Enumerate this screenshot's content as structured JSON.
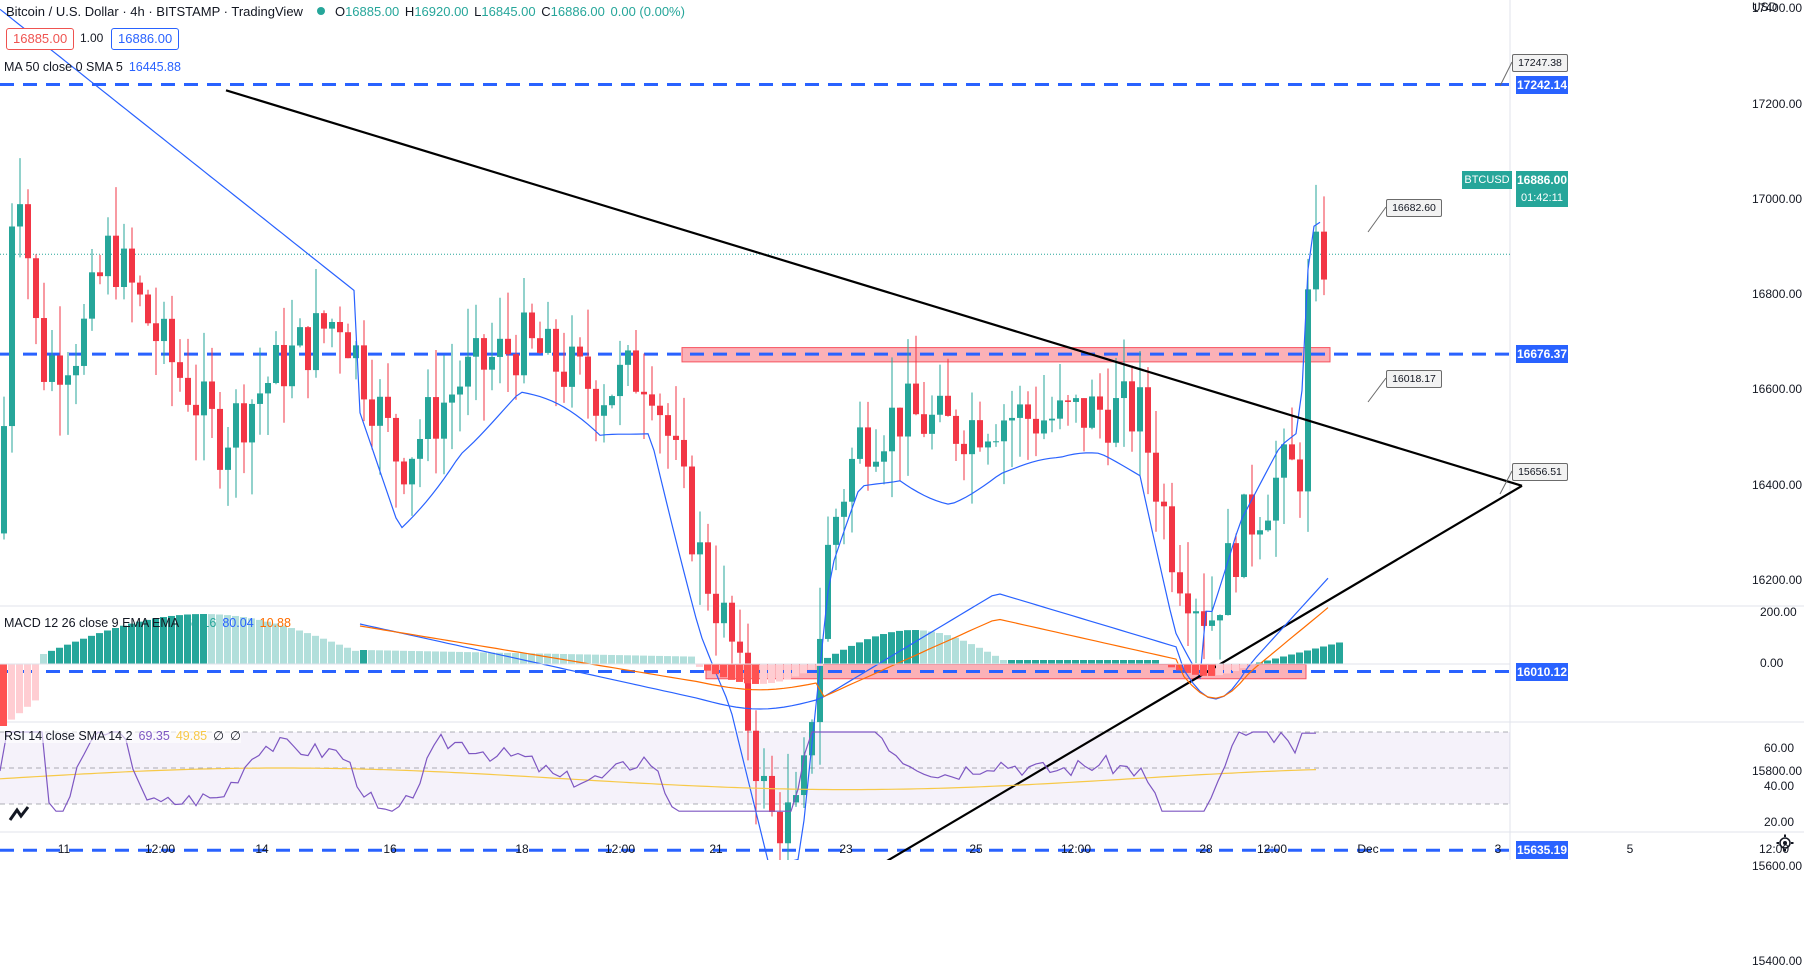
{
  "header": {
    "symbol": "Bitcoin / U.S. Dollar · 4h · BITSTAMP · TradingView",
    "ohlc": {
      "o_label": "O",
      "o": "16885.00",
      "h_label": "H",
      "h": "16920.00",
      "l_label": "L",
      "l": "16845.00",
      "c_label": "C",
      "c": "16886.00",
      "change": "0.00 (0.00%)"
    },
    "sell_price": "16885.00",
    "spread": "1.00",
    "buy_price": "16886.00",
    "currency": "USD"
  },
  "indicators": {
    "ma": {
      "label": "MA 50 close 0 SMA 5",
      "value": "16445.88"
    },
    "macd": {
      "label": "MACD 12 26 close 9 EMA EMA",
      "v1": "69.16",
      "v2": "80.04",
      "v3": "10.88"
    },
    "rsi": {
      "label": "RSI 14 close SMA 14 2",
      "v1": "69.35",
      "v2": "49.85",
      "v3": "∅",
      "v4": "∅"
    }
  },
  "price_axis": {
    "ticks": [
      17400,
      17200,
      17000,
      16800,
      16600,
      16400,
      16200,
      15800,
      15600,
      15400
    ],
    "badges": [
      {
        "label": "17242.14",
        "value": 17242.14
      },
      {
        "label": "16676.37",
        "value": 16676.37
      },
      {
        "label": "16010.12",
        "value": 16010.12
      },
      {
        "label": "15635.19",
        "value": 15635.19
      }
    ],
    "last": {
      "symbol": "BTCUSD",
      "price": "16886.00",
      "countdown": "01:42:11",
      "value": 16886
    }
  },
  "macd_axis": [
    "200.00",
    "0.00"
  ],
  "rsi_axis": [
    "60.00",
    "40.00",
    "20.00"
  ],
  "callouts": [
    {
      "label": "17247.38",
      "value": 17247.38
    },
    {
      "label": "16682.60",
      "value": 16682.6
    },
    {
      "label": "16018.17",
      "value": 16018.17
    },
    {
      "label": "15656.51",
      "value": 15656.51
    }
  ],
  "time_axis": [
    "11",
    "12:00",
    "14",
    "16",
    "18",
    "12:00",
    "21",
    "23",
    "25",
    "12:00",
    "28",
    "12:00",
    "Dec",
    "3",
    "5",
    "12:00"
  ],
  "chart_data": {
    "type": "candlestick",
    "timeframe": "4h",
    "support_resistance": [
      17242.14,
      16676.37,
      16010.12,
      15635.19
    ],
    "zones": [
      [
        16660,
        16690
      ],
      [
        15995,
        16025
      ]
    ],
    "triangle": {
      "upper_from": 17230,
      "lower_from": 15480,
      "apex": 16400
    },
    "last_price": 16886,
    "colors": {
      "up": "#26a69a",
      "down": "#f23645",
      "ma": "#2962ff",
      "level": "#2962ff",
      "rsi": "#7e57c2",
      "rsi_ma": "#f7c948",
      "macd_line": "#2962ff",
      "signal_line": "#ff6d00"
    }
  }
}
